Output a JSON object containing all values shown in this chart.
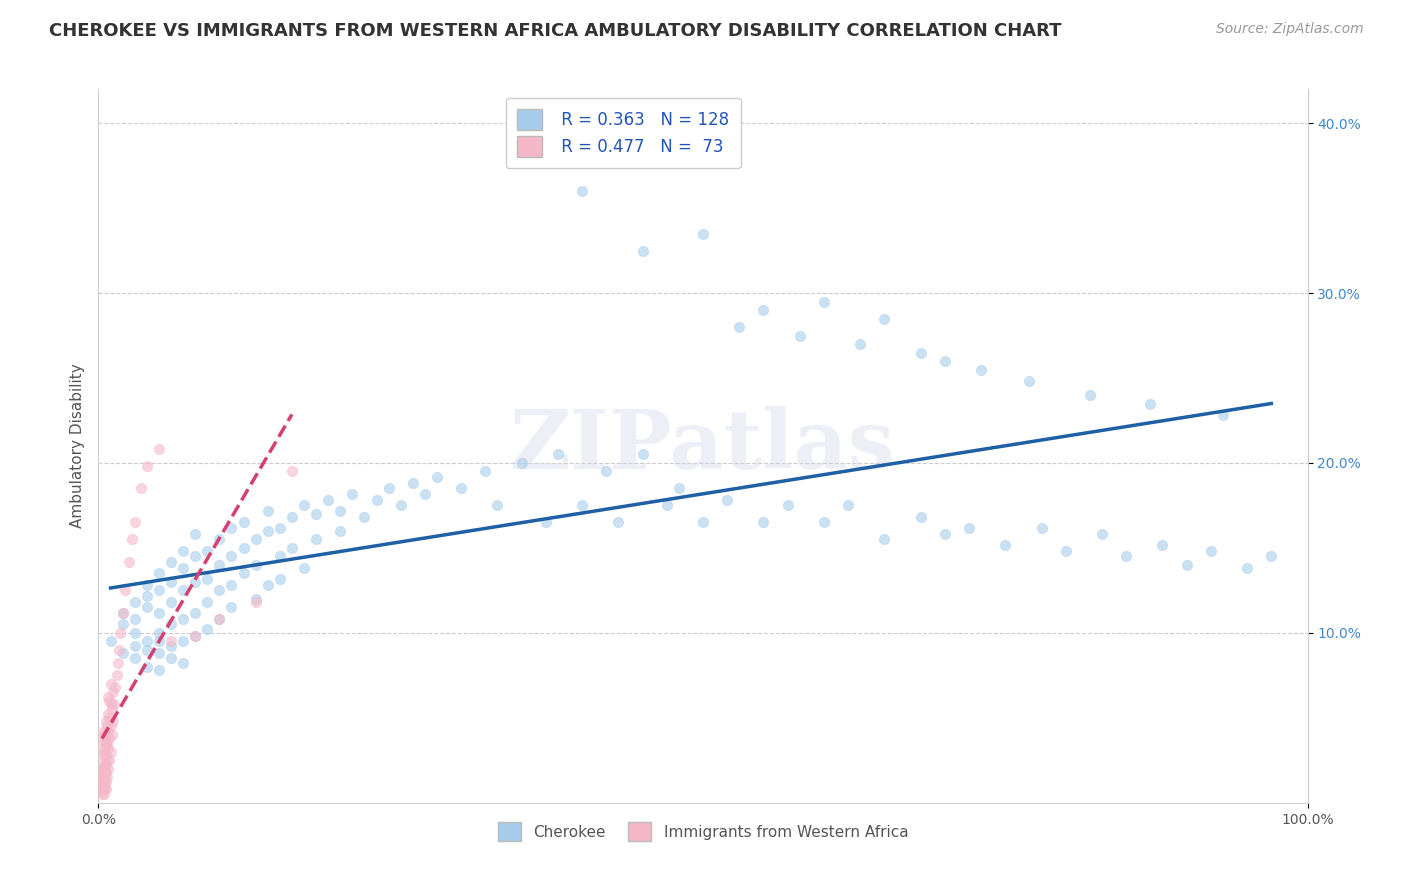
{
  "title": "CHEROKEE VS IMMIGRANTS FROM WESTERN AFRICA AMBULATORY DISABILITY CORRELATION CHART",
  "source": "Source: ZipAtlas.com",
  "ylabel": "Ambulatory Disability",
  "xlim": [
    0.0,
    1.0
  ],
  "ylim": [
    0.0,
    0.42
  ],
  "x_tick_labels": [
    "0.0%",
    "100.0%"
  ],
  "y_tick_labels": [
    "10.0%",
    "20.0%",
    "30.0%",
    "40.0%"
  ],
  "y_tick_values": [
    0.1,
    0.2,
    0.3,
    0.4
  ],
  "legend_label1": "Cherokee",
  "legend_label2": "Immigrants from Western Africa",
  "R1": 0.363,
  "N1": 128,
  "R2": 0.477,
  "N2": 73,
  "color1": "#a8ccec",
  "color2": "#f4b8c8",
  "line1_color": "#1f5fa6",
  "line2_color": "#d44070",
  "background_color": "#ffffff",
  "grid_color": "#cccccc",
  "title_color": "#333333",
  "watermark_text": "ZIPatlas",
  "title_fontsize": 13,
  "axis_fontsize": 11,
  "tick_fontsize": 10,
  "source_fontsize": 10,
  "cherokee_x": [
    0.01,
    0.02,
    0.02,
    0.02,
    0.03,
    0.03,
    0.03,
    0.03,
    0.03,
    0.04,
    0.04,
    0.04,
    0.04,
    0.04,
    0.04,
    0.05,
    0.05,
    0.05,
    0.05,
    0.05,
    0.05,
    0.05,
    0.06,
    0.06,
    0.06,
    0.06,
    0.06,
    0.06,
    0.07,
    0.07,
    0.07,
    0.07,
    0.07,
    0.07,
    0.08,
    0.08,
    0.08,
    0.08,
    0.08,
    0.09,
    0.09,
    0.09,
    0.09,
    0.1,
    0.1,
    0.1,
    0.1,
    0.11,
    0.11,
    0.11,
    0.11,
    0.12,
    0.12,
    0.12,
    0.13,
    0.13,
    0.13,
    0.14,
    0.14,
    0.14,
    0.15,
    0.15,
    0.15,
    0.16,
    0.16,
    0.17,
    0.17,
    0.18,
    0.18,
    0.19,
    0.2,
    0.2,
    0.21,
    0.22,
    0.23,
    0.24,
    0.25,
    0.26,
    0.27,
    0.28,
    0.3,
    0.32,
    0.33,
    0.35,
    0.37,
    0.38,
    0.4,
    0.42,
    0.43,
    0.45,
    0.47,
    0.48,
    0.5,
    0.52,
    0.55,
    0.57,
    0.6,
    0.62,
    0.65,
    0.68,
    0.7,
    0.72,
    0.75,
    0.78,
    0.8,
    0.83,
    0.85,
    0.88,
    0.9,
    0.92,
    0.95,
    0.97,
    0.4,
    0.5,
    0.55,
    0.6,
    0.65,
    0.7,
    0.45,
    0.53,
    0.58,
    0.63,
    0.68,
    0.73,
    0.77,
    0.82,
    0.87,
    0.93
  ],
  "cherokee_y": [
    0.095,
    0.105,
    0.088,
    0.112,
    0.1,
    0.092,
    0.118,
    0.085,
    0.108,
    0.095,
    0.122,
    0.08,
    0.115,
    0.09,
    0.128,
    0.1,
    0.112,
    0.088,
    0.125,
    0.095,
    0.135,
    0.078,
    0.118,
    0.105,
    0.13,
    0.092,
    0.142,
    0.085,
    0.125,
    0.108,
    0.138,
    0.095,
    0.148,
    0.082,
    0.13,
    0.112,
    0.145,
    0.098,
    0.158,
    0.118,
    0.132,
    0.148,
    0.102,
    0.14,
    0.125,
    0.155,
    0.108,
    0.145,
    0.128,
    0.162,
    0.115,
    0.15,
    0.135,
    0.165,
    0.12,
    0.155,
    0.14,
    0.16,
    0.128,
    0.172,
    0.145,
    0.162,
    0.132,
    0.168,
    0.15,
    0.175,
    0.138,
    0.17,
    0.155,
    0.178,
    0.16,
    0.172,
    0.182,
    0.168,
    0.178,
    0.185,
    0.175,
    0.188,
    0.182,
    0.192,
    0.185,
    0.195,
    0.175,
    0.2,
    0.165,
    0.205,
    0.175,
    0.195,
    0.165,
    0.205,
    0.175,
    0.185,
    0.165,
    0.178,
    0.165,
    0.175,
    0.165,
    0.175,
    0.155,
    0.168,
    0.158,
    0.162,
    0.152,
    0.162,
    0.148,
    0.158,
    0.145,
    0.152,
    0.14,
    0.148,
    0.138,
    0.145,
    0.36,
    0.335,
    0.29,
    0.295,
    0.285,
    0.26,
    0.325,
    0.28,
    0.275,
    0.27,
    0.265,
    0.255,
    0.248,
    0.24,
    0.235,
    0.228
  ],
  "africa_x": [
    0.003,
    0.003,
    0.003,
    0.003,
    0.004,
    0.004,
    0.004,
    0.004,
    0.004,
    0.005,
    0.005,
    0.005,
    0.005,
    0.005,
    0.005,
    0.005,
    0.005,
    0.005,
    0.005,
    0.005,
    0.005,
    0.005,
    0.005,
    0.005,
    0.005,
    0.006,
    0.006,
    0.006,
    0.006,
    0.006,
    0.006,
    0.006,
    0.006,
    0.007,
    0.007,
    0.007,
    0.007,
    0.008,
    0.008,
    0.008,
    0.008,
    0.008,
    0.009,
    0.009,
    0.009,
    0.009,
    0.01,
    0.01,
    0.01,
    0.01,
    0.011,
    0.011,
    0.012,
    0.012,
    0.013,
    0.014,
    0.015,
    0.016,
    0.017,
    0.018,
    0.02,
    0.022,
    0.025,
    0.028,
    0.03,
    0.035,
    0.04,
    0.05,
    0.06,
    0.08,
    0.1,
    0.13,
    0.16
  ],
  "africa_y": [
    0.005,
    0.008,
    0.01,
    0.015,
    0.008,
    0.012,
    0.015,
    0.02,
    0.01,
    0.005,
    0.008,
    0.01,
    0.012,
    0.015,
    0.018,
    0.02,
    0.022,
    0.025,
    0.028,
    0.03,
    0.032,
    0.035,
    0.038,
    0.04,
    0.042,
    0.008,
    0.012,
    0.018,
    0.022,
    0.028,
    0.035,
    0.04,
    0.048,
    0.015,
    0.025,
    0.035,
    0.045,
    0.02,
    0.032,
    0.042,
    0.052,
    0.062,
    0.025,
    0.038,
    0.05,
    0.06,
    0.03,
    0.045,
    0.058,
    0.07,
    0.04,
    0.055,
    0.048,
    0.065,
    0.058,
    0.068,
    0.075,
    0.082,
    0.09,
    0.1,
    0.112,
    0.125,
    0.142,
    0.155,
    0.165,
    0.185,
    0.198,
    0.208,
    0.095,
    0.098,
    0.108,
    0.118,
    0.195
  ]
}
